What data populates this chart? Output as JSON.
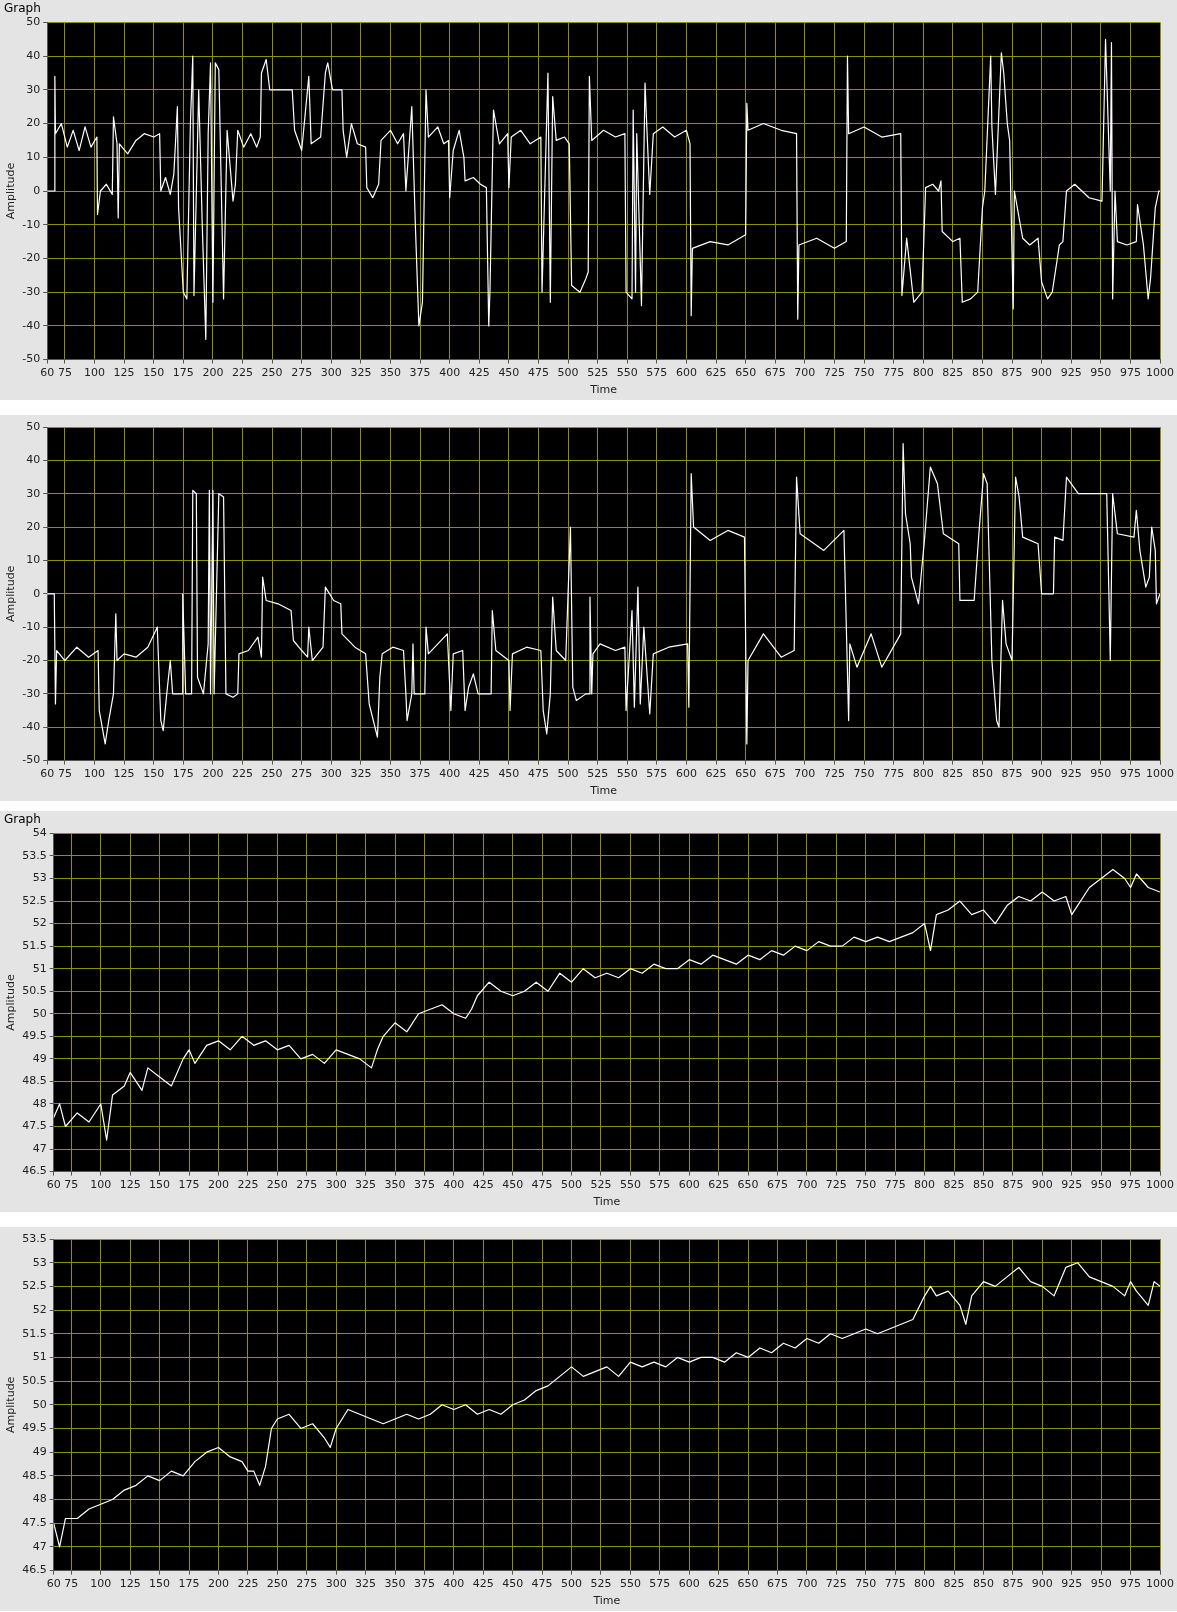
{
  "chart_data": [
    {
      "type": "line",
      "title": "Graph",
      "xlabel": "Time",
      "ylabel": "Amplitude",
      "color": "#ffffff",
      "grid": true,
      "xlim": [
        60,
        1000
      ],
      "xticks": [
        60,
        75,
        100,
        125,
        150,
        175,
        200,
        225,
        250,
        275,
        300,
        325,
        350,
        375,
        400,
        425,
        450,
        475,
        500,
        525,
        550,
        575,
        600,
        625,
        650,
        675,
        700,
        725,
        750,
        775,
        800,
        825,
        850,
        875,
        900,
        925,
        950,
        975,
        1000
      ],
      "ylim": [
        -50,
        50
      ],
      "yticks": [
        -50,
        -40,
        -30,
        -20,
        -10,
        0,
        10,
        20,
        30,
        40,
        50
      ],
      "x": [
        60,
        66,
        66.5,
        67,
        72,
        77,
        82,
        87,
        92,
        97,
        102,
        102.5,
        105,
        110,
        115,
        116,
        119,
        120,
        121,
        128,
        135,
        142,
        150,
        155,
        156,
        160,
        164,
        167,
        170,
        171,
        175,
        178,
        181,
        183,
        184,
        188,
        191,
        194,
        196,
        198,
        200,
        202,
        205,
        209,
        212,
        217,
        219,
        221,
        226,
        232,
        237,
        240,
        241,
        245,
        248,
        267,
        269,
        275,
        281,
        283,
        291,
        295,
        297,
        301,
        309,
        310,
        313,
        317,
        322,
        329,
        330,
        335,
        340,
        342,
        350,
        356,
        361,
        363,
        368,
        371,
        374,
        377,
        380,
        382,
        390,
        395,
        399,
        400,
        403,
        408,
        412,
        413,
        420,
        426,
        431,
        433,
        434,
        437,
        442,
        449,
        450,
        452,
        460,
        468,
        477,
        478,
        483,
        485,
        487,
        490,
        497,
        501,
        503,
        510,
        515,
        517,
        518,
        520,
        530,
        540,
        548,
        549,
        554,
        555,
        557,
        558,
        562,
        565,
        567,
        569,
        572,
        580,
        590,
        600,
        603,
        604,
        605,
        620,
        635,
        650,
        651,
        652,
        665,
        680,
        693,
        694,
        695,
        710,
        725,
        735,
        736,
        737,
        750,
        765,
        781,
        782,
        786,
        792,
        799,
        802,
        808,
        813,
        815,
        816,
        825,
        831,
        833,
        840,
        846,
        850,
        852,
        857,
        858,
        861,
        866,
        868,
        871,
        873,
        876,
        877,
        884,
        890,
        897,
        900,
        905,
        909,
        915,
        918,
        921,
        928,
        940,
        951,
        954,
        958,
        959,
        960,
        962,
        964,
        972,
        980,
        981,
        986,
        990,
        992,
        996,
        999,
        1000
      ],
      "values": [
        0,
        0,
        34,
        17,
        20,
        13,
        18,
        12,
        19,
        13,
        16,
        -7,
        0,
        2,
        -1,
        22,
        14,
        -8,
        14,
        11,
        15,
        17,
        16,
        17,
        0,
        4,
        -1,
        5,
        25,
        -5,
        -30,
        -32,
        20,
        40,
        -31,
        30,
        -10,
        -44,
        17,
        38,
        -33,
        38,
        36,
        -32,
        18,
        -3,
        2,
        18,
        13,
        17,
        13,
        16,
        35,
        39,
        30,
        30,
        18,
        12,
        34,
        14,
        16,
        35,
        38,
        30,
        30,
        18,
        10,
        20,
        14,
        13,
        1,
        -2,
        2,
        15,
        18,
        14,
        17,
        0,
        25,
        -10,
        -40,
        -33,
        30,
        16,
        19,
        14,
        15,
        -2,
        12,
        18,
        10,
        3,
        4,
        2,
        1,
        -40,
        -30,
        24,
        14,
        17,
        1,
        16,
        18,
        14,
        16,
        -30,
        35,
        -33,
        28,
        15,
        16,
        14,
        -28,
        -30,
        -26,
        -24,
        34,
        15,
        18,
        16,
        17,
        -30,
        -32,
        24,
        -30,
        17,
        -34,
        32,
        15,
        -1,
        17,
        19,
        16,
        18,
        14,
        -37,
        -17,
        -15,
        -16,
        -13,
        26,
        18,
        20,
        18,
        17,
        -38,
        -16,
        -14,
        -17,
        -15,
        40,
        17,
        19,
        16,
        17,
        -31,
        -14,
        -33,
        -30,
        1,
        2,
        0,
        3,
        -12,
        -15,
        -14,
        -33,
        -32,
        -30,
        -5,
        0,
        40,
        19,
        -1,
        41,
        35,
        20,
        15,
        -35,
        0,
        -14,
        -16,
        -14,
        -27,
        -32,
        -30,
        -16,
        -15,
        0,
        2,
        -2,
        -3,
        45,
        0,
        44,
        -32,
        0,
        -15,
        -16,
        -15,
        -4,
        -16,
        -32,
        -26,
        -5,
        0,
        0
      ]
    },
    {
      "type": "line",
      "xlabel": "Time",
      "ylabel": "Amplitude",
      "color": "#ffffff",
      "grid": true,
      "xlim": [
        60,
        1000
      ],
      "xticks": [
        60,
        75,
        100,
        125,
        150,
        175,
        200,
        225,
        250,
        275,
        300,
        325,
        350,
        375,
        400,
        425,
        450,
        475,
        500,
        525,
        550,
        575,
        600,
        625,
        650,
        675,
        700,
        725,
        750,
        775,
        800,
        825,
        850,
        875,
        900,
        925,
        950,
        975,
        1000
      ],
      "ylim": [
        -50,
        50
      ],
      "yticks": [
        -50,
        -40,
        -30,
        -20,
        -10,
        0,
        10,
        20,
        30,
        40,
        50
      ],
      "x": [
        60,
        66,
        67,
        68,
        75,
        85,
        95,
        103,
        104,
        109,
        112,
        116,
        118,
        119,
        125,
        135,
        145,
        153,
        156,
        158,
        161,
        164,
        166,
        174,
        174.5,
        177,
        182,
        183,
        186,
        187,
        192,
        196,
        197,
        198,
        200,
        201,
        205,
        209,
        211,
        217,
        221,
        222,
        230,
        238,
        241,
        242,
        245,
        255,
        266,
        268,
        275,
        280,
        281,
        284,
        293,
        295,
        302,
        308,
        309,
        320,
        329,
        332,
        339,
        341,
        343,
        352,
        361,
        363,
        364,
        368,
        369,
        370,
        379,
        380,
        382,
        390,
        398,
        401,
        403,
        411,
        413,
        416,
        420,
        424,
        435,
        436,
        439,
        450,
        451,
        453,
        465,
        477,
        479,
        482,
        485,
        487,
        490,
        498,
        500,
        502,
        504,
        507,
        515,
        518,
        518.5,
        520,
        521,
        527,
        540,
        548,
        549,
        554,
        556,
        559,
        561,
        564,
        569,
        572,
        585,
        601,
        602,
        604,
        606,
        620,
        635,
        649,
        651,
        652,
        665,
        680,
        691,
        693,
        696,
        716,
        733,
        737,
        738,
        744,
        756,
        765,
        781,
        783,
        785,
        789,
        790,
        796,
        801,
        806,
        812,
        817,
        830,
        831,
        843,
        847,
        851,
        854,
        858,
        862,
        864,
        867,
        870,
        875,
        878,
        881,
        884,
        897,
        900,
        910,
        911,
        918,
        921,
        931,
        955,
        957,
        958,
        960,
        964,
        978,
        980,
        983,
        988,
        991,
        993,
        996,
        997,
        1000
      ],
      "values": [
        0,
        0,
        -33,
        -17,
        -20,
        -16,
        -19,
        -17,
        -35,
        -45,
        -38,
        -30,
        -6,
        -20,
        -18,
        -19,
        -16,
        -10,
        -38,
        -41,
        -30,
        -20,
        -30,
        -30,
        0,
        -30,
        -30,
        31,
        30,
        -25,
        -30,
        -15,
        31,
        -30,
        31,
        -30,
        30,
        29,
        -30,
        -31,
        -30,
        -18,
        -17,
        -13,
        -19,
        5,
        -2,
        -3,
        -5,
        -14,
        -17,
        -19,
        -10,
        -20,
        -16,
        2,
        -2,
        -3,
        -12,
        -16,
        -18,
        -33,
        -43,
        -25,
        -18,
        -16,
        -17,
        -30,
        -38,
        -30,
        -15,
        -30,
        -30,
        -10,
        -18,
        -15,
        -12,
        -35,
        -18,
        -17,
        -35,
        -28,
        -24,
        -30,
        -30,
        -5,
        -17,
        -20,
        -35,
        -18,
        -16,
        -17,
        -35,
        -42,
        -30,
        -1,
        -17,
        -20,
        0,
        20,
        -28,
        -32,
        -30,
        -30,
        -1,
        -30,
        -18,
        -15,
        -17,
        -16,
        -35,
        -5,
        -34,
        2,
        -33,
        -10,
        -36,
        -18,
        -16,
        -15,
        -34,
        36,
        20,
        16,
        19,
        17,
        -45,
        -20,
        -12,
        -19,
        -17,
        35,
        18,
        13,
        19,
        -38,
        -15,
        -22,
        -12,
        -22,
        -12,
        45,
        24,
        15,
        5,
        -3,
        16,
        38,
        33,
        18,
        15,
        -2,
        -2,
        18,
        36,
        33,
        -20,
        -38,
        -40,
        -2,
        -15,
        -20,
        35,
        29,
        17,
        15,
        0,
        0,
        17,
        16,
        35,
        30,
        30,
        -3,
        -20,
        30,
        18,
        17,
        25,
        13,
        2,
        5,
        20,
        13,
        -3,
        0
      ]
    },
    {
      "type": "line",
      "title": "Graph",
      "xlabel": "Time",
      "ylabel": "Amplitude",
      "color": "#ffffff",
      "grid": true,
      "xlim": [
        60,
        1000
      ],
      "xticks": [
        60,
        75,
        100,
        125,
        150,
        175,
        200,
        225,
        250,
        275,
        300,
        325,
        350,
        375,
        400,
        425,
        450,
        475,
        500,
        525,
        550,
        575,
        600,
        625,
        650,
        675,
        700,
        725,
        750,
        775,
        800,
        825,
        850,
        875,
        900,
        925,
        950,
        975,
        1000
      ],
      "ylim": [
        46.5,
        54
      ],
      "yticks": [
        46.5,
        47,
        47.5,
        48,
        48.5,
        49,
        49.5,
        50,
        50.5,
        51,
        51.5,
        52,
        52.5,
        53,
        53.5,
        54
      ],
      "x": [
        60,
        65,
        70,
        80,
        90,
        100,
        105,
        110,
        120,
        125,
        135,
        140,
        150,
        160,
        170,
        175,
        180,
        190,
        200,
        210,
        220,
        230,
        240,
        250,
        260,
        270,
        280,
        290,
        300,
        310,
        320,
        330,
        335,
        340,
        350,
        360,
        370,
        380,
        390,
        400,
        410,
        415,
        420,
        430,
        440,
        450,
        460,
        470,
        480,
        490,
        500,
        510,
        520,
        530,
        540,
        550,
        560,
        570,
        580,
        590,
        600,
        610,
        620,
        630,
        640,
        650,
        660,
        670,
        680,
        690,
        700,
        710,
        720,
        730,
        740,
        750,
        760,
        770,
        780,
        790,
        800,
        805,
        810,
        820,
        830,
        840,
        850,
        860,
        870,
        880,
        890,
        900,
        910,
        920,
        925,
        930,
        940,
        950,
        960,
        970,
        975,
        980,
        990,
        1000
      ],
      "values": [
        47.7,
        48,
        47.5,
        47.8,
        47.6,
        48,
        47.2,
        48.2,
        48.4,
        48.7,
        48.3,
        48.8,
        48.6,
        48.4,
        49,
        49.2,
        48.9,
        49.3,
        49.4,
        49.2,
        49.5,
        49.3,
        49.4,
        49.2,
        49.3,
        49,
        49.1,
        48.9,
        49.2,
        49.1,
        49,
        48.8,
        49.2,
        49.5,
        49.8,
        49.6,
        50,
        50.1,
        50.2,
        50,
        49.9,
        50.1,
        50.4,
        50.7,
        50.5,
        50.4,
        50.5,
        50.7,
        50.5,
        50.9,
        50.7,
        51,
        50.8,
        50.9,
        50.8,
        51,
        50.9,
        51.1,
        51,
        51,
        51.2,
        51.1,
        51.3,
        51.2,
        51.1,
        51.3,
        51.2,
        51.4,
        51.3,
        51.5,
        51.4,
        51.6,
        51.5,
        51.5,
        51.7,
        51.6,
        51.7,
        51.6,
        51.7,
        51.8,
        52,
        51.4,
        52.2,
        52.3,
        52.5,
        52.2,
        52.3,
        52,
        52.4,
        52.6,
        52.5,
        52.7,
        52.5,
        52.6,
        52.2,
        52.4,
        52.8,
        53,
        53.2,
        53,
        52.8,
        53.1,
        52.8,
        52.7
      ]
    },
    {
      "type": "line",
      "xlabel": "Time",
      "ylabel": "Amplitude",
      "color": "#ffffff",
      "grid": true,
      "xlim": [
        60,
        1000
      ],
      "xticks": [
        60,
        75,
        100,
        125,
        150,
        175,
        200,
        225,
        250,
        275,
        300,
        325,
        350,
        375,
        400,
        425,
        450,
        475,
        500,
        525,
        550,
        575,
        600,
        625,
        650,
        675,
        700,
        725,
        750,
        775,
        800,
        825,
        850,
        875,
        900,
        925,
        950,
        975,
        1000
      ],
      "ylim": [
        46.5,
        53.5
      ],
      "yticks": [
        46.5,
        47,
        47.5,
        48,
        48.5,
        49,
        49.5,
        50,
        50.5,
        51,
        51.5,
        52,
        52.5,
        53,
        53.5
      ],
      "x": [
        60,
        65,
        70,
        80,
        90,
        100,
        110,
        120,
        130,
        140,
        150,
        160,
        170,
        180,
        190,
        200,
        210,
        220,
        225,
        230,
        235,
        240,
        245,
        250,
        260,
        270,
        280,
        290,
        295,
        300,
        310,
        320,
        330,
        340,
        350,
        360,
        370,
        380,
        390,
        400,
        410,
        420,
        430,
        440,
        450,
        460,
        470,
        480,
        490,
        500,
        510,
        520,
        530,
        540,
        550,
        560,
        570,
        580,
        590,
        600,
        610,
        620,
        630,
        640,
        650,
        660,
        670,
        680,
        690,
        700,
        710,
        720,
        730,
        740,
        750,
        760,
        770,
        780,
        790,
        800,
        805,
        810,
        820,
        830,
        835,
        840,
        850,
        860,
        870,
        880,
        890,
        900,
        910,
        920,
        930,
        940,
        950,
        960,
        970,
        975,
        980,
        990,
        995,
        1000
      ],
      "values": [
        47.5,
        47,
        47.6,
        47.6,
        47.8,
        47.9,
        48,
        48.2,
        48.3,
        48.5,
        48.4,
        48.6,
        48.5,
        48.8,
        49,
        49.1,
        48.9,
        48.8,
        48.6,
        48.6,
        48.3,
        48.7,
        49.5,
        49.7,
        49.8,
        49.5,
        49.6,
        49.3,
        49.1,
        49.5,
        49.9,
        49.8,
        49.7,
        49.6,
        49.7,
        49.8,
        49.7,
        49.8,
        50,
        49.9,
        50,
        49.8,
        49.9,
        49.8,
        50,
        50.1,
        50.3,
        50.4,
        50.6,
        50.8,
        50.6,
        50.7,
        50.8,
        50.6,
        50.9,
        50.8,
        50.9,
        50.8,
        51,
        50.9,
        51,
        51,
        50.9,
        51.1,
        51,
        51.2,
        51.1,
        51.3,
        51.2,
        51.4,
        51.3,
        51.5,
        51.4,
        51.5,
        51.6,
        51.5,
        51.6,
        51.7,
        51.8,
        52.3,
        52.5,
        52.3,
        52.4,
        52.1,
        51.7,
        52.3,
        52.6,
        52.5,
        52.7,
        52.9,
        52.6,
        52.5,
        52.3,
        52.9,
        53,
        52.7,
        52.6,
        52.5,
        52.3,
        52.6,
        52.4,
        52.1,
        52.6,
        52.5
      ]
    }
  ]
}
